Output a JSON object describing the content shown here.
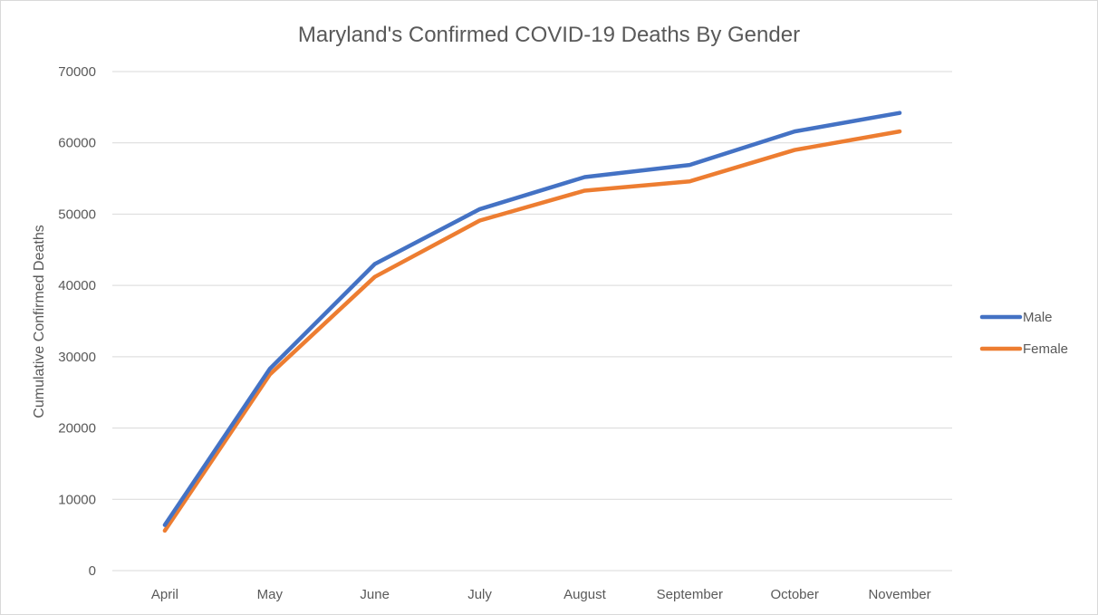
{
  "chart_data": {
    "type": "line",
    "title": "Maryland's Confirmed COVID-19 Deaths By Gender",
    "xlabel": "",
    "ylabel": "Cumulative Confirmed Deaths",
    "categories": [
      "April",
      "May",
      "June",
      "July",
      "August",
      "September",
      "October",
      "November"
    ],
    "ylim": [
      0,
      70000
    ],
    "yticks": [
      "0",
      "10000",
      "20000",
      "30000",
      "40000",
      "50000",
      "60000",
      "70000"
    ],
    "grid": true,
    "legend_position": "right",
    "series": [
      {
        "name": "Male",
        "color": "#4472C4",
        "values": [
          6400,
          28300,
          43000,
          50700,
          55200,
          56900,
          61600,
          64200
        ]
      },
      {
        "name": "Female",
        "color": "#ED7D31",
        "values": [
          5600,
          27500,
          41200,
          49100,
          53300,
          54600,
          59000,
          61600
        ]
      }
    ]
  }
}
